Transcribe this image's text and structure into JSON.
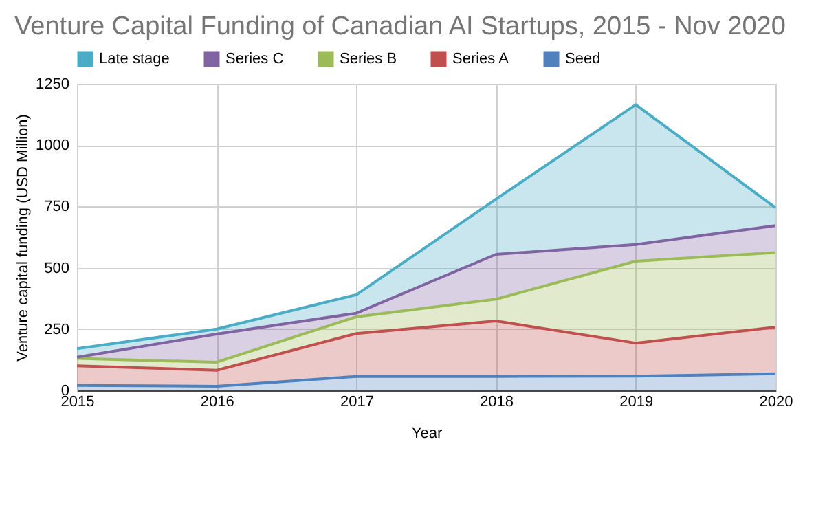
{
  "chart_data": {
    "type": "area",
    "stacked": true,
    "title": "Venture Capital Funding of Canadian AI Startups, 2015 - Nov 2020",
    "xlabel": "Year",
    "ylabel": "Venture capital funding (USD Million)",
    "x": [
      2015,
      2016,
      2017,
      2018,
      2019,
      2020
    ],
    "series": [
      {
        "name": "Seed",
        "color": "#4f81bd",
        "values": [
          20,
          17,
          57,
          57,
          58,
          68
        ]
      },
      {
        "name": "Series A",
        "color": "#c0504d",
        "values": [
          80,
          65,
          175,
          226,
          135,
          190
        ]
      },
      {
        "name": "Series B",
        "color": "#9bbb59",
        "values": [
          30,
          33,
          68,
          89,
          334,
          304
        ]
      },
      {
        "name": "Series C",
        "color": "#8064a2",
        "values": [
          5,
          115,
          15,
          183,
          68,
          110
        ]
      },
      {
        "name": "Late stage",
        "color": "#4bacc6",
        "values": [
          35,
          20,
          75,
          225,
          570,
          73
        ]
      }
    ],
    "xlim": [
      2015,
      2020
    ],
    "xticks": [
      2015,
      2016,
      2017,
      2018,
      2019,
      2020
    ],
    "ylim": [
      0,
      1250
    ],
    "yticks": [
      0,
      250,
      500,
      750,
      1000,
      1250
    ],
    "grid": true,
    "legend": "top"
  }
}
